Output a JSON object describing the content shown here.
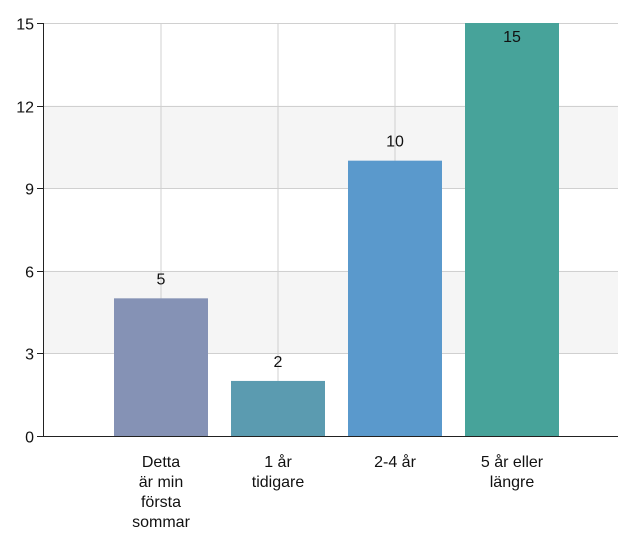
{
  "chart_data": {
    "type": "bar",
    "categories": [
      [
        "Detta",
        "är min",
        "första",
        "sommar"
      ],
      [
        "1 år",
        "tidigare"
      ],
      [
        "2-4 år"
      ],
      [
        "5 år eller",
        "längre"
      ]
    ],
    "values": [
      5,
      2,
      10,
      15
    ],
    "value_labels": [
      "5",
      "2",
      "10",
      "15"
    ],
    "yticks": [
      "0",
      "3",
      "6",
      "9",
      "12",
      "15"
    ],
    "ylim": [
      0,
      15
    ],
    "colors": [
      "#8592b5",
      "#5b9bb0",
      "#5a99cc",
      "#47a39a"
    ],
    "grid": true,
    "band_color": "#f5f5f5"
  }
}
